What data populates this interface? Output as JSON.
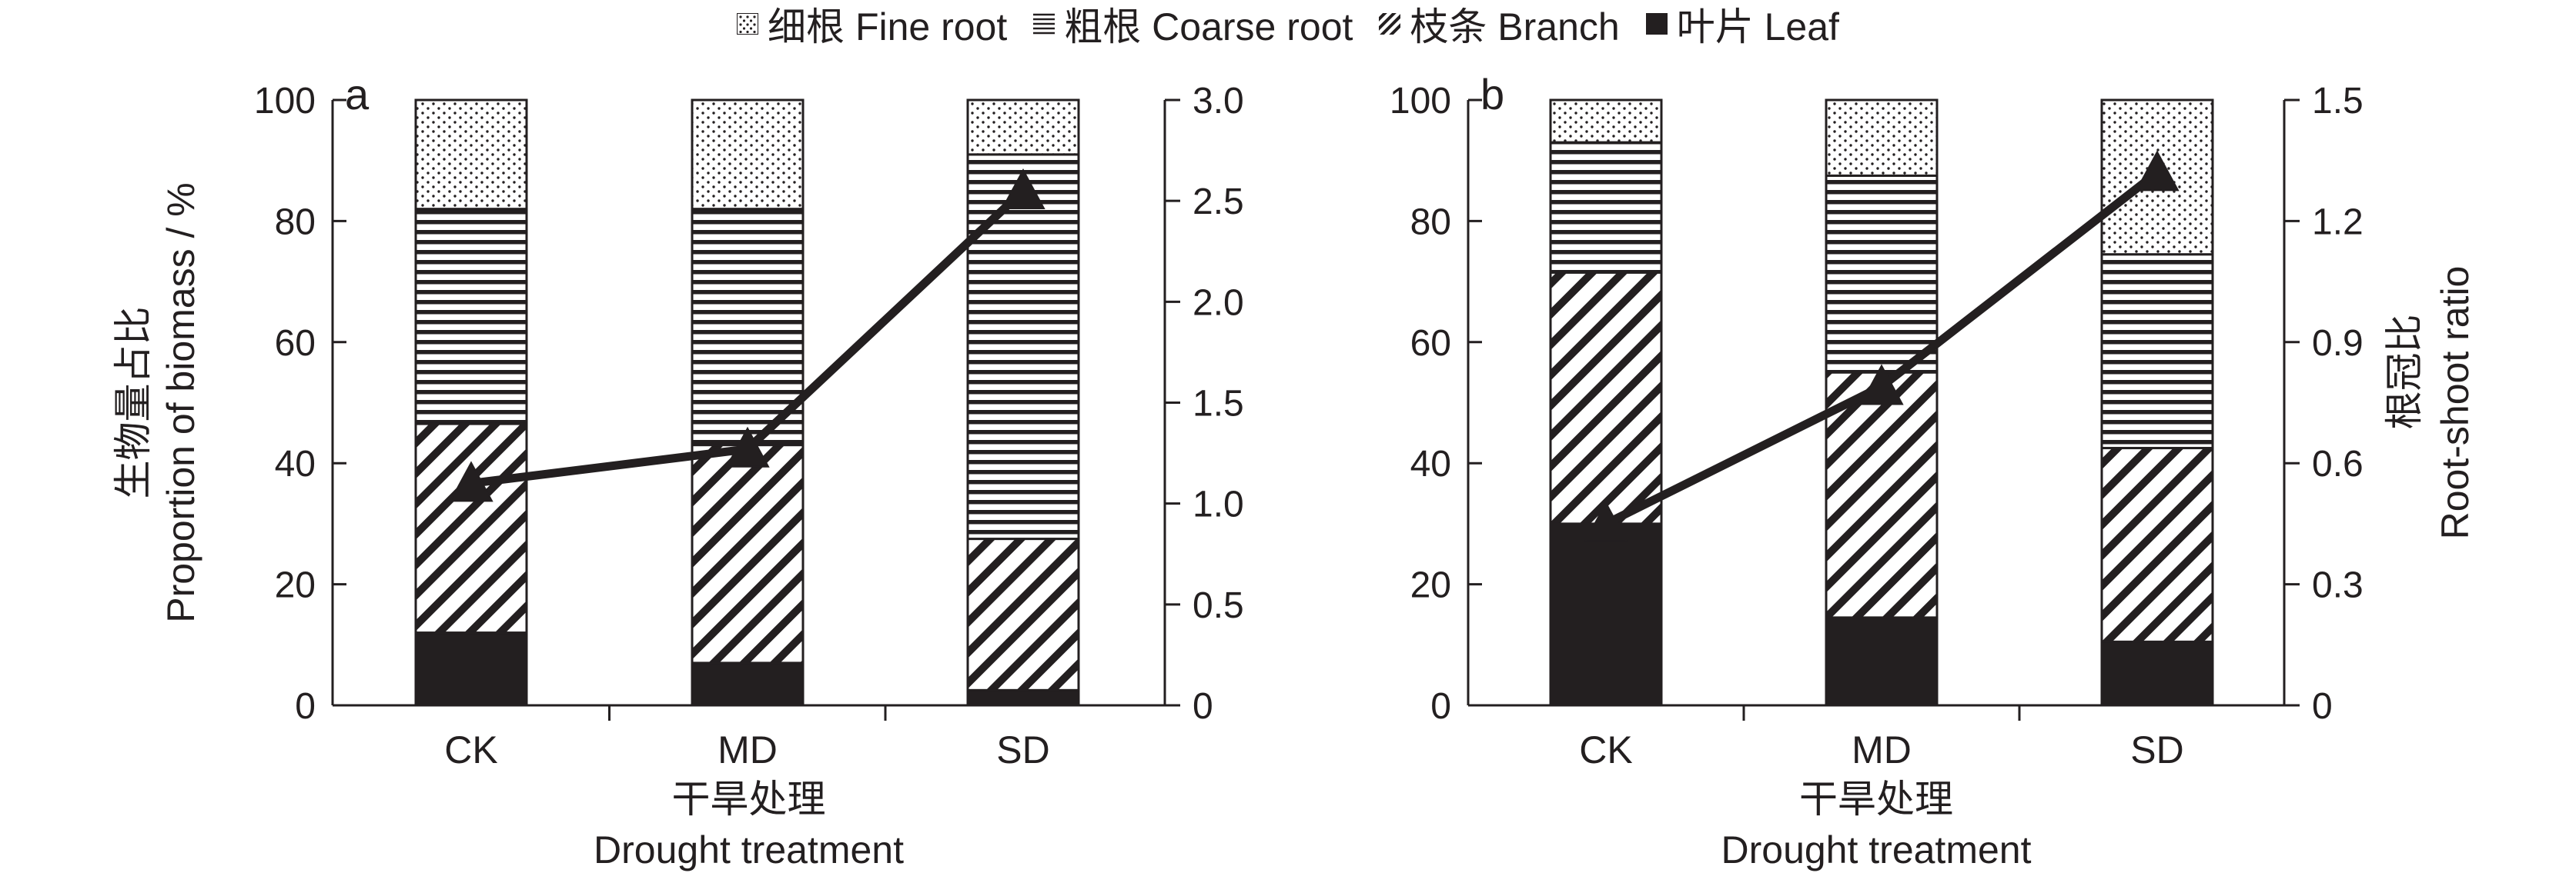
{
  "legend": [
    {
      "key": "fine",
      "label": "细根 Fine root",
      "pattern": "dots"
    },
    {
      "key": "coarse",
      "label": "粗根 Coarse root",
      "pattern": "hlines"
    },
    {
      "key": "branch",
      "label": "枝条 Branch",
      "pattern": "diagonal"
    },
    {
      "key": "leaf",
      "label": "叶片 Leaf",
      "pattern": "solid"
    }
  ],
  "colors": {
    "ink": "#231f20",
    "background": "#ffffff"
  },
  "chart_data": [
    {
      "panel_label": "a",
      "type": "bar",
      "stacked": true,
      "categories": [
        "CK",
        "MD",
        "SD"
      ],
      "series": [
        {
          "name": "叶片 Leaf",
          "pattern": "solid",
          "values": [
            12,
            7,
            2.5
          ]
        },
        {
          "name": "枝条 Branch",
          "pattern": "diagonal",
          "values": [
            34.5,
            36,
            25
          ]
        },
        {
          "name": "粗根 Coarse root",
          "pattern": "hlines",
          "values": [
            35.5,
            39,
            63.5
          ]
        },
        {
          "name": "细根 Fine root",
          "pattern": "dots",
          "values": [
            18,
            18,
            9
          ]
        }
      ],
      "line": {
        "values": [
          1.1,
          1.27,
          2.55
        ],
        "marker": "triangle"
      },
      "ylim": [
        0,
        100
      ],
      "yticks": [
        "0",
        "20",
        "40",
        "60",
        "80",
        "100"
      ],
      "y2lim": [
        0,
        3.0
      ],
      "y2ticks": [
        "0",
        "0.5",
        "1.0",
        "1.5",
        "2.0",
        "2.5",
        "3.0"
      ],
      "ylabel_cn": "生物量占比",
      "ylabel_en": "Proportion of biomass / %",
      "y2label_cn": "",
      "y2label_en": "",
      "xlabel_cn": "干旱处理",
      "xlabel_en": "Drought treatment"
    },
    {
      "panel_label": "b",
      "type": "bar",
      "stacked": true,
      "categories": [
        "CK",
        "MD",
        "SD"
      ],
      "series": [
        {
          "name": "叶片 Leaf",
          "pattern": "solid",
          "values": [
            30,
            14.5,
            10.5
          ]
        },
        {
          "name": "枝条 Branch",
          "pattern": "diagonal",
          "values": [
            41.5,
            40.5,
            32
          ]
        },
        {
          "name": "粗根 Coarse root",
          "pattern": "hlines",
          "values": [
            21.5,
            32.5,
            32
          ]
        },
        {
          "name": "细根 Fine root",
          "pattern": "dots",
          "values": [
            7,
            12.5,
            25.5
          ]
        }
      ],
      "line": {
        "values": [
          0.45,
          0.79,
          1.32
        ],
        "marker": "triangle"
      },
      "ylim": [
        0,
        100
      ],
      "yticks": [
        "0",
        "20",
        "40",
        "60",
        "80",
        "100"
      ],
      "y2lim": [
        0,
        1.5
      ],
      "y2ticks": [
        "0",
        "0.3",
        "0.6",
        "0.9",
        "1.2",
        "1.5"
      ],
      "ylabel_cn": "",
      "ylabel_en": "",
      "y2label_cn": "根冠比",
      "y2label_en": "Root-shoot ratio",
      "xlabel_cn": "干旱处理",
      "xlabel_en": "Drought treatment"
    }
  ]
}
